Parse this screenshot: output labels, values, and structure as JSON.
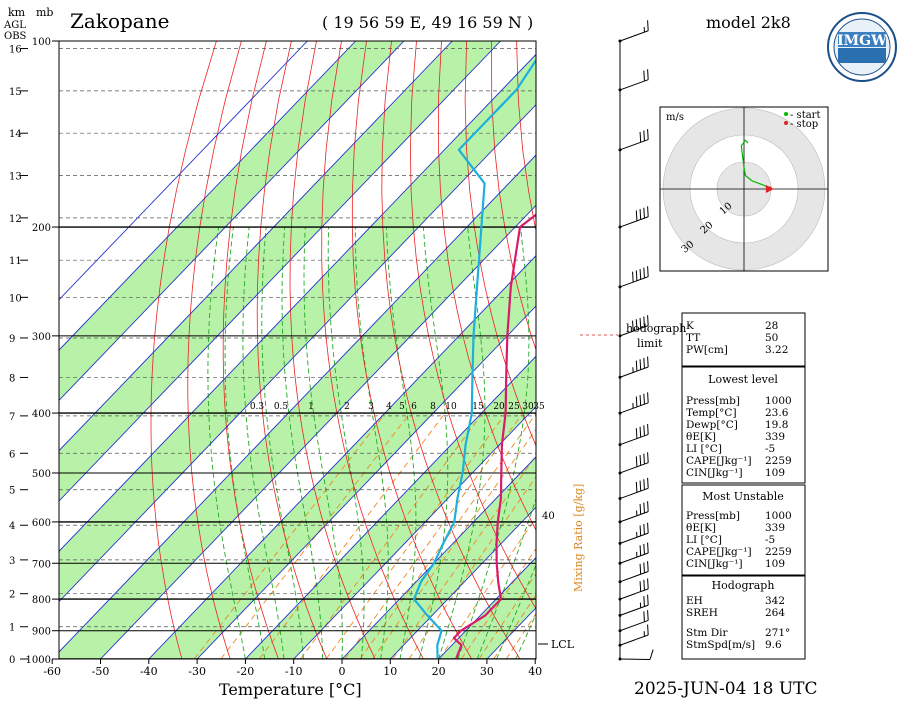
{
  "header": {
    "station": "Zakopane",
    "coords": "( 19 56 59  E, 49 16 59 N )",
    "model": "model 2k8",
    "logo_text": "IMGW",
    "datetime": "2025-JUN-04   18 UTC"
  },
  "axis_labels": {
    "km": "km",
    "mb": "mb",
    "agl": "AGL",
    "obs": "OBS",
    "temperature": "Temperature [°C]",
    "mixing_ratio": "Mixing Ratio [g/kg]",
    "lcl": "LCL",
    "hodograph_limit": [
      "hodograph",
      "limit"
    ],
    "extra_40": "40"
  },
  "chart_data": {
    "type": "skew-t log-p",
    "pressure_ticks": [
      100,
      200,
      300,
      400,
      500,
      600,
      700,
      800,
      900,
      1000
    ],
    "pressure_tick_labels": [
      "100",
      "200",
      "300",
      "400",
      "500",
      "600",
      "700",
      "800",
      "900",
      "1000"
    ],
    "height_ticks_km": [
      0,
      1,
      2,
      3,
      4,
      5,
      6,
      7,
      8,
      9,
      10,
      11,
      12,
      13,
      14,
      15,
      16
    ],
    "height_tick_labels": [
      "0",
      "1",
      "2",
      "3",
      "4",
      "5",
      "6",
      "7",
      "8",
      "9",
      "10",
      "11",
      "12",
      "13",
      "14",
      "15",
      "16"
    ],
    "temperature_ticks": [
      -60,
      -50,
      -40,
      -30,
      -20,
      -10,
      0,
      10,
      20,
      30,
      40
    ],
    "temperature_tick_labels": [
      "-60",
      "-50",
      "-40",
      "-30",
      "-20",
      "-10",
      "0",
      "10",
      "20",
      "30",
      "40"
    ],
    "mixing_ratio_labels": [
      "0.3",
      "0.5",
      "1",
      "2",
      "3",
      "4",
      "5",
      "6",
      "8",
      "10",
      "15",
      "20",
      "25",
      "30",
      "35"
    ],
    "temperature_profile": [
      [
        1000,
        23.6
      ],
      [
        950,
        22
      ],
      [
        925,
        19
      ],
      [
        900,
        19
      ],
      [
        850,
        21
      ],
      [
        800,
        21
      ],
      [
        750,
        17
      ],
      [
        700,
        13
      ],
      [
        650,
        9
      ],
      [
        600,
        5
      ],
      [
        550,
        1
      ],
      [
        500,
        -4
      ],
      [
        450,
        -9.5
      ],
      [
        400,
        -15
      ],
      [
        350,
        -22
      ],
      [
        300,
        -30
      ],
      [
        250,
        -39
      ],
      [
        200,
        -49
      ],
      [
        180,
        -47
      ],
      [
        160,
        -47
      ],
      [
        140,
        -47
      ],
      [
        120,
        -48
      ],
      [
        100,
        -47
      ]
    ],
    "dewpoint_profile": [
      [
        1000,
        19.8
      ],
      [
        950,
        17
      ],
      [
        925,
        16
      ],
      [
        900,
        15
      ],
      [
        850,
        9
      ],
      [
        800,
        3
      ],
      [
        750,
        1
      ],
      [
        700,
        0
      ],
      [
        650,
        -2
      ],
      [
        600,
        -4
      ],
      [
        550,
        -8
      ],
      [
        500,
        -12
      ],
      [
        450,
        -17
      ],
      [
        400,
        -22
      ],
      [
        350,
        -29
      ],
      [
        300,
        -37
      ],
      [
        250,
        -46
      ],
      [
        200,
        -57
      ],
      [
        170,
        -65
      ],
      [
        150,
        -77
      ],
      [
        120,
        -77
      ],
      [
        100,
        -80
      ]
    ],
    "wind_profile": [
      {
        "p": 1000,
        "dir": 271,
        "spd": 10
      },
      {
        "p": 950,
        "dir": 250,
        "spd": 15
      },
      {
        "p": 900,
        "dir": 250,
        "spd": 20
      },
      {
        "p": 850,
        "dir": 250,
        "spd": 25
      },
      {
        "p": 800,
        "dir": 250,
        "spd": 30
      },
      {
        "p": 750,
        "dir": 250,
        "spd": 30
      },
      {
        "p": 700,
        "dir": 250,
        "spd": 35
      },
      {
        "p": 650,
        "dir": 250,
        "spd": 35
      },
      {
        "p": 600,
        "dir": 250,
        "spd": 35
      },
      {
        "p": 550,
        "dir": 250,
        "spd": 40
      },
      {
        "p": 500,
        "dir": 250,
        "spd": 40
      },
      {
        "p": 450,
        "dir": 250,
        "spd": 40
      },
      {
        "p": 400,
        "dir": 250,
        "spd": 45
      },
      {
        "p": 350,
        "dir": 250,
        "spd": 45
      },
      {
        "p": 300,
        "dir": 250,
        "spd": 50
      },
      {
        "p": 250,
        "dir": 250,
        "spd": 50
      },
      {
        "p": 200,
        "dir": 250,
        "spd": 40
      },
      {
        "p": 150,
        "dir": 250,
        "spd": 30
      },
      {
        "p": 120,
        "dir": 250,
        "spd": 20
      },
      {
        "p": 100,
        "dir": 250,
        "spd": 15
      }
    ],
    "hodograph": {
      "unit_label": "m/s",
      "ring_labels": [
        "10",
        "20",
        "30"
      ],
      "legend": [
        {
          "label": "- start",
          "color": "#00bb00"
        },
        {
          "label": "- stop",
          "color": "#dd2222"
        }
      ],
      "trace_xy_ms": [
        [
          9.6,
          0.2
        ],
        [
          7,
          1.5
        ],
        [
          3,
          3
        ],
        [
          0.5,
          5
        ],
        [
          0,
          8
        ],
        [
          -0.5,
          12
        ],
        [
          -1,
          16
        ],
        [
          0.5,
          18
        ],
        [
          1.5,
          17
        ]
      ]
    }
  },
  "indices_box": {
    "top": [
      {
        "label": "K",
        "value": "28"
      },
      {
        "label": "TT",
        "value": "50"
      },
      {
        "label": "PW[cm]",
        "value": "3.22"
      }
    ],
    "lowest_level": {
      "title": "Lowest level",
      "rows": [
        {
          "label": "Press[mb]",
          "value": "1000"
        },
        {
          "label": "Temp[°C]",
          "value": "23.6"
        },
        {
          "label": "Dewp[°C]",
          "value": "19.8"
        },
        {
          "label": "θE[K]",
          "value": "339"
        },
        {
          "label": "LI [°C]",
          "value": "-5"
        },
        {
          "label": "CAPE[Jkg⁻¹]",
          "value": "2259"
        },
        {
          "label": "CIN[Jkg⁻¹]",
          "value": "109"
        }
      ]
    },
    "most_unstable": {
      "title": "Most Unstable",
      "rows": [
        {
          "label": "Press[mb]",
          "value": "1000"
        },
        {
          "label": "θE[K]",
          "value": "339"
        },
        {
          "label": "LI [°C]",
          "value": "-5"
        },
        {
          "label": "CAPE[Jkg⁻¹]",
          "value": "2259"
        },
        {
          "label": "CIN[Jkg⁻¹]",
          "value": "109"
        }
      ]
    },
    "hodograph": {
      "title": "Hodograph",
      "rows": [
        {
          "label": "EH",
          "value": "342"
        },
        {
          "label": "SREH",
          "value": "264"
        },
        {
          "label": "Stm Dir",
          "value": "271°"
        },
        {
          "label": "StmSpd[m/s]",
          "value": "9.6"
        }
      ]
    }
  },
  "colors": {
    "temperature": "#d81b6b",
    "dewpoint": "#1eb0dc",
    "isotherm": "#2233cc",
    "dry_adiabat": "#ee2222",
    "moist_adiabat": "#22aa22",
    "mixing_ratio": "#ee8822",
    "band_fill": "#b8f2a8"
  }
}
